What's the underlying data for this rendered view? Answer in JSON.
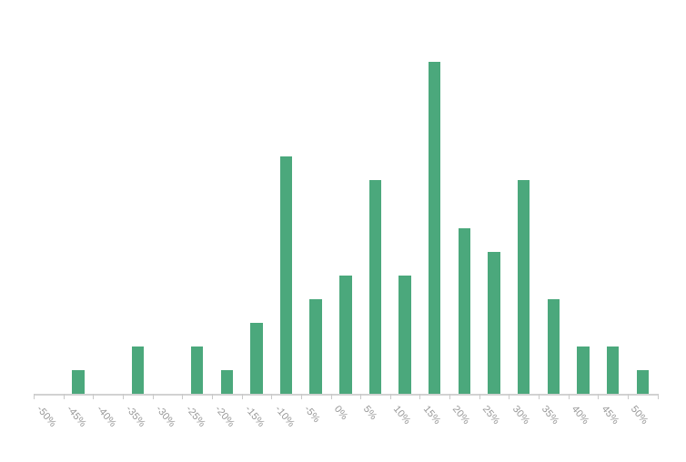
{
  "chart_data": {
    "type": "bar",
    "title": "",
    "subtitle": "",
    "xlabel": "",
    "ylabel": "",
    "legend": false,
    "grid": false,
    "legend_position": "none",
    "categories": [
      "-50%",
      "-45%",
      "-40%",
      "-35%",
      "-30%",
      "-25%",
      "-20%",
      "-15%",
      "-10%",
      "-5%",
      "0%",
      "5%",
      "10%",
      "15%",
      "20%",
      "25%",
      "30%",
      "35%",
      "40%",
      "45%",
      "50%"
    ],
    "values": [
      0,
      1,
      0,
      2,
      0,
      2,
      1,
      3,
      10,
      4,
      5,
      9,
      5,
      14,
      7,
      6,
      9,
      4,
      2,
      2,
      1
    ],
    "ylim": [
      0,
      14
    ],
    "x_label_rotation_deg": 50,
    "colors": {
      "bar": "#4ba87c",
      "axis": "#d2d2d2",
      "tick": "#c9c9c9",
      "label": "#979797",
      "background": "#ffffff"
    }
  }
}
